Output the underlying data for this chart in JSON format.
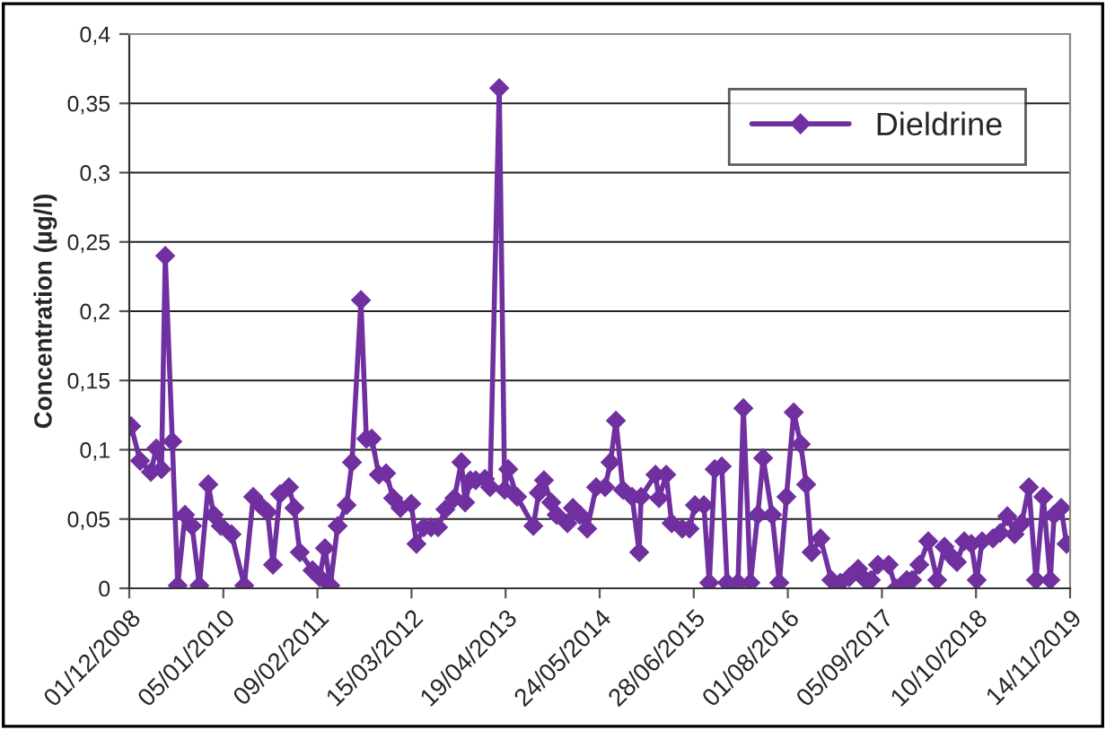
{
  "chart_data": {
    "type": "line",
    "ylabel": "Concentration (µg/l)",
    "x": [
      "2008-12-09",
      "2009-01-16",
      "2009-03-03",
      "2009-03-26",
      "2009-04-17",
      "2009-05-03",
      "2009-06-02",
      "2009-06-25",
      "2009-07-26",
      "2009-08-25",
      "2009-09-25",
      "2009-11-02",
      "2009-11-25",
      "2009-12-25",
      "2010-02-09",
      "2010-04-04",
      "2010-05-12",
      "2010-06-11",
      "2010-07-12",
      "2010-08-04",
      "2010-09-03",
      "2010-10-11",
      "2010-11-03",
      "2010-11-26",
      "2011-01-19",
      "2011-02-18",
      "2011-03-13",
      "2011-04-05",
      "2011-05-06",
      "2011-06-13",
      "2011-07-06",
      "2011-08-13",
      "2011-09-05",
      "2011-09-28",
      "2011-10-28",
      "2011-11-28",
      "2011-12-28",
      "2012-01-28",
      "2012-03-14",
      "2012-04-05",
      "2012-05-06",
      "2012-06-06",
      "2012-07-06",
      "2012-08-06",
      "2012-09-13",
      "2012-10-13",
      "2012-10-29",
      "2012-11-20",
      "2012-12-13",
      "2013-01-21",
      "2013-02-12",
      "2013-03-23",
      "2013-04-15",
      "2013-04-30",
      "2013-06-07",
      "2013-08-15",
      "2013-09-07",
      "2013-09-29",
      "2013-10-30",
      "2013-11-22",
      "2014-01-07",
      "2014-01-30",
      "2014-03-01",
      "2014-04-01",
      "2014-05-09",
      "2014-06-16",
      "2014-07-09",
      "2014-08-01",
      "2014-08-31",
      "2014-10-09",
      "2014-11-08",
      "2014-11-16",
      "2015-01-16",
      "2015-01-31",
      "2015-03-03",
      "2015-03-26",
      "2015-05-10",
      "2015-06-10",
      "2015-07-03",
      "2015-08-10",
      "2015-09-02",
      "2015-09-25",
      "2015-10-25",
      "2015-11-17",
      "2016-01-02",
      "2016-01-25",
      "2016-02-24",
      "2016-03-26",
      "2016-04-18",
      "2016-05-26",
      "2016-06-26",
      "2016-07-26",
      "2016-08-26",
      "2016-09-25",
      "2016-10-18",
      "2016-11-10",
      "2016-12-18",
      "2017-02-02",
      "2017-03-12",
      "2017-04-19",
      "2017-05-27",
      "2017-06-27",
      "2017-07-20",
      "2017-08-19",
      "2017-10-04",
      "2017-11-04",
      "2017-12-20",
      "2018-01-11",
      "2018-02-11",
      "2018-03-21",
      "2018-04-28",
      "2018-05-29",
      "2018-06-28",
      "2018-07-21",
      "2018-08-21",
      "2018-09-20",
      "2018-10-13",
      "2018-11-05",
      "2018-12-21",
      "2019-01-21",
      "2019-02-20",
      "2019-03-23",
      "2019-04-22",
      "2019-05-23",
      "2019-06-22",
      "2019-07-23",
      "2019-08-22",
      "2019-09-07",
      "2019-10-07",
      "2019-10-30"
    ],
    "series": [
      {
        "name": "Dieldrine",
        "color": "#7030a0",
        "values": [
          0.117,
          0.092,
          0.084,
          0.101,
          0.086,
          0.24,
          0.106,
          0.002,
          0.053,
          0.045,
          0.002,
          0.075,
          0.053,
          0.045,
          0.039,
          0.002,
          0.066,
          0.06,
          0.055,
          0.017,
          0.068,
          0.073,
          0.058,
          0.026,
          0.013,
          0.008,
          0.029,
          0.002,
          0.045,
          0.06,
          0.091,
          0.208,
          0.108,
          0.108,
          0.082,
          0.083,
          0.065,
          0.058,
          0.061,
          0.032,
          0.044,
          0.044,
          0.044,
          0.057,
          0.065,
          0.091,
          0.062,
          0.078,
          0.078,
          0.079,
          0.073,
          0.361,
          0.071,
          0.086,
          0.066,
          0.045,
          0.069,
          0.078,
          0.062,
          0.053,
          0.047,
          0.058,
          0.053,
          0.043,
          0.073,
          0.073,
          0.091,
          0.121,
          0.071,
          0.066,
          0.026,
          0.066,
          0.082,
          0.065,
          0.082,
          0.047,
          0.043,
          0.043,
          0.06,
          0.06,
          0.004,
          0.086,
          0.088,
          0.004,
          0.004,
          0.13,
          0.004,
          0.053,
          0.094,
          0.053,
          0.004,
          0.066,
          0.127,
          0.104,
          0.075,
          0.026,
          0.036,
          0.006,
          0.004,
          0.008,
          0.014,
          0.006,
          0.006,
          0.017,
          0.017,
          0,
          0.006,
          0.006,
          0.017,
          0.034,
          0.006,
          0.03,
          0.023,
          0.019,
          0.034,
          0.032,
          0.006,
          0.034,
          0.036,
          0.04,
          0.052,
          0.039,
          0.047,
          0.073,
          0.006,
          0.066,
          0.006,
          0.053,
          0.058,
          0.032
        ]
      }
    ],
    "xlim": [
      "2008-12-01",
      "2019-11-14"
    ],
    "xticks": [
      {
        "value": "2008-12-01",
        "label": "01/12/2008"
      },
      {
        "value": "2010-01-05",
        "label": "05/01/2010"
      },
      {
        "value": "2011-02-09",
        "label": "09/02/2011"
      },
      {
        "value": "2012-03-15",
        "label": "15/03/2012"
      },
      {
        "value": "2013-04-19",
        "label": "19/04/2013"
      },
      {
        "value": "2014-05-24",
        "label": "24/05/2014"
      },
      {
        "value": "2015-06-28",
        "label": "28/06/2015"
      },
      {
        "value": "2016-08-01",
        "label": "01/08/2016"
      },
      {
        "value": "2017-09-05",
        "label": "05/09/2017"
      },
      {
        "value": "2018-10-10",
        "label": "10/10/2018"
      },
      {
        "value": "2019-11-14",
        "label": "14/11/2019"
      }
    ],
    "ylim": [
      0,
      0.4
    ],
    "yticks": [
      0,
      {
        "value": 0.05,
        "label": "0,05"
      },
      {
        "value": 0.1,
        "label": "0,1"
      },
      {
        "value": 0.15,
        "label": "0,15"
      },
      {
        "value": 0.2,
        "label": "0,2"
      },
      {
        "value": 0.25,
        "label": "0,25"
      },
      {
        "value": 0.3,
        "label": "0,3"
      },
      {
        "value": 0.35,
        "label": "0,35"
      },
      {
        "value": 0.4,
        "label": "0,4"
      }
    ],
    "grid": "y",
    "legend": "top right",
    "marker": "diamond",
    "line_style": "solid"
  }
}
